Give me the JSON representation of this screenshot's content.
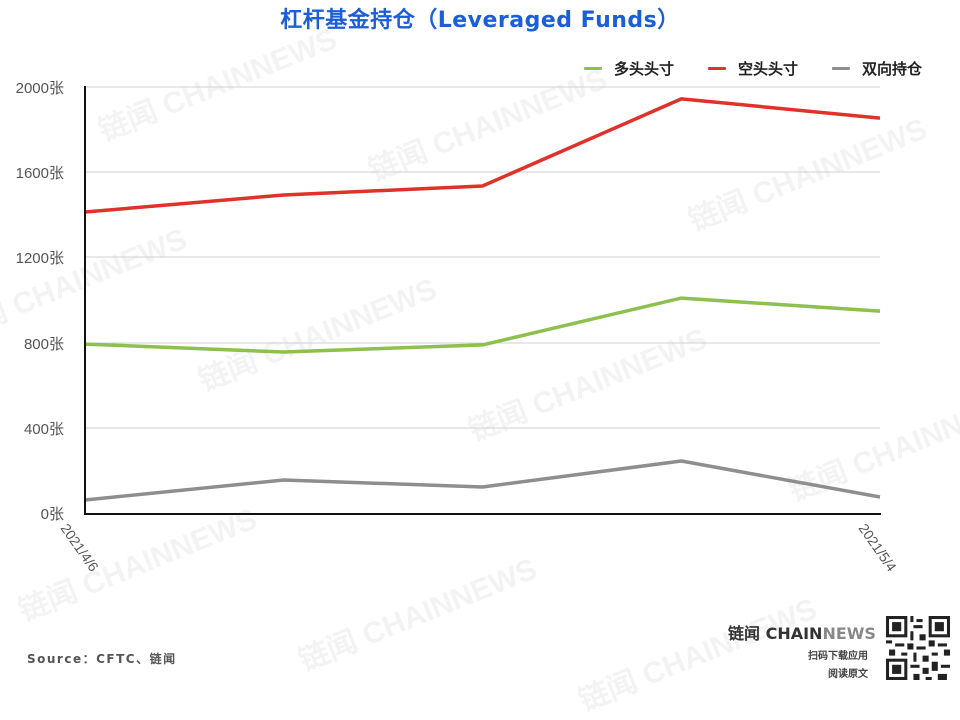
{
  "title": "杠杆基金持仓（Leveraged Funds）",
  "legend": [
    {
      "label": "多头头寸",
      "color": "#8dc04f"
    },
    {
      "label": "空头头寸",
      "color": "#e0312a"
    },
    {
      "label": "双向持仓",
      "color": "#8e8e8e"
    }
  ],
  "y_ticks": [
    "2000张",
    "1600张",
    "1200张",
    "800张",
    "400张",
    "0张"
  ],
  "x_ticks": [
    "2021/4/6",
    "2021/5/4"
  ],
  "source": "Source：CFTC、链闻",
  "brand": {
    "name_part1": "链闻 CHAIN",
    "name_part2": "NEWS",
    "line1": "扫码下载应用",
    "line2": "阅读原文"
  },
  "watermark": "链闻 CHAINNEWS",
  "chart_data": {
    "type": "line",
    "title": "杠杆基金持仓（Leveraged Funds）",
    "xlabel": "",
    "ylabel": "张",
    "x": [
      "2021/4/6",
      "2021/4/13",
      "2021/4/20",
      "2021/4/27",
      "2021/5/4"
    ],
    "ylim": [
      0,
      2000
    ],
    "y_ticks": [
      0,
      400,
      800,
      1200,
      1600,
      2000
    ],
    "grid": true,
    "legend_position": "top-right",
    "series": [
      {
        "name": "多头头寸",
        "color": "#8dc04f",
        "values": [
          793,
          756,
          789,
          1009,
          948
        ]
      },
      {
        "name": "空头头寸",
        "color": "#e0312a",
        "values": [
          1413,
          1493,
          1535,
          1944,
          1854
        ]
      },
      {
        "name": "双向持仓",
        "color": "#8e8e8e",
        "values": [
          61,
          155,
          122,
          244,
          75
        ]
      }
    ]
  }
}
